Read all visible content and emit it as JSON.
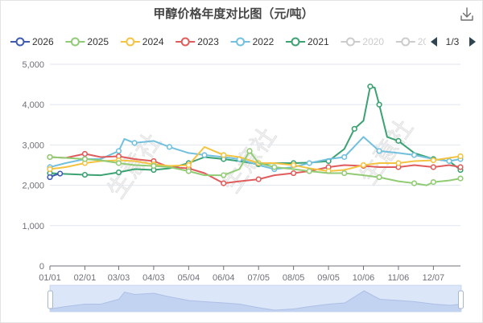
{
  "toolbar": {
    "download_icon": "download-icon"
  },
  "watermark": "生意社",
  "legend": {
    "hidden_items": [
      {
        "name": "2020",
        "color": "#cccccc"
      },
      {
        "name": "20",
        "color": "#cccccc"
      }
    ],
    "page_label": "1/3",
    "prev_icon": "triangle-left-icon",
    "next_icon": "triangle-right-icon",
    "inactive_color": "#cccccc"
  },
  "chart_data": {
    "type": "line",
    "title": "甲醇价格年度对比图（元/吨）",
    "xlabel": "",
    "ylabel": "",
    "ylim": [
      0,
      5000
    ],
    "grid": true,
    "legend_position": "top",
    "y_tick_labels": [
      "0",
      "1,000",
      "2,000",
      "3,000",
      "4,000",
      "5,000"
    ],
    "x_tick_labels": [
      "01/01",
      "02/01",
      "03/03",
      "04/03",
      "05/04",
      "06/04",
      "07/05",
      "08/05",
      "09/05",
      "10/06",
      "11/06",
      "12/07"
    ],
    "series": [
      {
        "name": "2026",
        "color": "#3f5bb0",
        "points": [
          [
            "01/01",
            2200
          ],
          [
            "01/05",
            2250
          ],
          [
            "01/10",
            2290
          ]
        ]
      },
      {
        "name": "2025",
        "color": "#91cc75",
        "points": [
          [
            "01/01",
            2700
          ],
          [
            "01/15",
            2680
          ],
          [
            "02/01",
            2650
          ],
          [
            "02/15",
            2620
          ],
          [
            "03/03",
            2550
          ],
          [
            "03/17",
            2500
          ],
          [
            "04/03",
            2480
          ],
          [
            "04/17",
            2450
          ],
          [
            "05/04",
            2350
          ],
          [
            "05/18",
            2250
          ],
          [
            "06/04",
            2250
          ],
          [
            "06/18",
            2400
          ],
          [
            "06/27",
            2850
          ],
          [
            "07/05",
            2550
          ],
          [
            "07/19",
            2450
          ],
          [
            "08/05",
            2400
          ],
          [
            "08/19",
            2350
          ],
          [
            "09/05",
            2300
          ],
          [
            "09/19",
            2300
          ],
          [
            "10/06",
            2250
          ],
          [
            "10/20",
            2200
          ],
          [
            "11/06",
            2100
          ],
          [
            "11/20",
            2050
          ],
          [
            "12/01",
            2000
          ],
          [
            "12/07",
            2080
          ],
          [
            "12/21",
            2120
          ],
          [
            "12/31",
            2170
          ]
        ]
      },
      {
        "name": "2024",
        "color": "#f5c342",
        "points": [
          [
            "01/01",
            2400
          ],
          [
            "01/15",
            2450
          ],
          [
            "02/01",
            2550
          ],
          [
            "02/15",
            2600
          ],
          [
            "03/03",
            2620
          ],
          [
            "03/17",
            2600
          ],
          [
            "04/03",
            2520
          ],
          [
            "04/17",
            2480
          ],
          [
            "05/04",
            2500
          ],
          [
            "05/18",
            2950
          ],
          [
            "06/04",
            2750
          ],
          [
            "06/18",
            2700
          ],
          [
            "07/05",
            2550
          ],
          [
            "07/19",
            2550
          ],
          [
            "08/05",
            2500
          ],
          [
            "08/19",
            2420
          ],
          [
            "09/05",
            2350
          ],
          [
            "09/19",
            2380
          ],
          [
            "10/06",
            2500
          ],
          [
            "10/20",
            2550
          ],
          [
            "11/06",
            2550
          ],
          [
            "11/20",
            2600
          ],
          [
            "12/07",
            2620
          ],
          [
            "12/21",
            2680
          ],
          [
            "12/31",
            2720
          ]
        ]
      },
      {
        "name": "2023",
        "color": "#e05c5c",
        "points": [
          [
            "01/01",
            2700
          ],
          [
            "01/15",
            2680
          ],
          [
            "02/01",
            2780
          ],
          [
            "02/15",
            2700
          ],
          [
            "03/03",
            2720
          ],
          [
            "03/17",
            2650
          ],
          [
            "04/03",
            2600
          ],
          [
            "04/17",
            2450
          ],
          [
            "05/04",
            2420
          ],
          [
            "05/18",
            2300
          ],
          [
            "06/04",
            2050
          ],
          [
            "06/18",
            2100
          ],
          [
            "07/05",
            2150
          ],
          [
            "07/19",
            2250
          ],
          [
            "08/05",
            2300
          ],
          [
            "08/19",
            2350
          ],
          [
            "09/05",
            2450
          ],
          [
            "09/19",
            2500
          ],
          [
            "10/06",
            2480
          ],
          [
            "10/20",
            2450
          ],
          [
            "11/06",
            2450
          ],
          [
            "11/20",
            2500
          ],
          [
            "12/07",
            2450
          ],
          [
            "12/21",
            2500
          ],
          [
            "12/31",
            2450
          ]
        ]
      },
      {
        "name": "2022",
        "color": "#73c0de",
        "points": [
          [
            "01/01",
            2450
          ],
          [
            "01/15",
            2550
          ],
          [
            "02/01",
            2650
          ],
          [
            "02/15",
            2650
          ],
          [
            "03/03",
            2850
          ],
          [
            "03/08",
            3150
          ],
          [
            "03/17",
            3050
          ],
          [
            "04/03",
            3100
          ],
          [
            "04/17",
            2950
          ],
          [
            "05/04",
            2800
          ],
          [
            "05/18",
            2750
          ],
          [
            "06/04",
            2700
          ],
          [
            "06/18",
            2650
          ],
          [
            "07/05",
            2500
          ],
          [
            "07/19",
            2400
          ],
          [
            "08/05",
            2450
          ],
          [
            "08/19",
            2550
          ],
          [
            "09/05",
            2650
          ],
          [
            "09/19",
            2700
          ],
          [
            "10/06",
            3200
          ],
          [
            "10/20",
            2850
          ],
          [
            "11/06",
            2800
          ],
          [
            "11/20",
            2750
          ],
          [
            "12/07",
            2650
          ],
          [
            "12/21",
            2600
          ],
          [
            "12/31",
            2650
          ]
        ]
      },
      {
        "name": "2021",
        "color": "#3ba272",
        "points": [
          [
            "01/01",
            2300
          ],
          [
            "01/15",
            2280
          ],
          [
            "02/01",
            2260
          ],
          [
            "02/15",
            2250
          ],
          [
            "03/03",
            2320
          ],
          [
            "03/17",
            2400
          ],
          [
            "04/03",
            2380
          ],
          [
            "04/17",
            2420
          ],
          [
            "05/04",
            2550
          ],
          [
            "05/18",
            2700
          ],
          [
            "06/04",
            2650
          ],
          [
            "06/18",
            2600
          ],
          [
            "07/05",
            2520
          ],
          [
            "07/19",
            2550
          ],
          [
            "08/05",
            2550
          ],
          [
            "08/19",
            2560
          ],
          [
            "09/05",
            2600
          ],
          [
            "09/19",
            2900
          ],
          [
            "09/28",
            3400
          ],
          [
            "10/06",
            3600
          ],
          [
            "10/12",
            4450
          ],
          [
            "10/16",
            4420
          ],
          [
            "10/20",
            4000
          ],
          [
            "10/27",
            3200
          ],
          [
            "11/06",
            3100
          ],
          [
            "11/20",
            2800
          ],
          [
            "12/07",
            2650
          ],
          [
            "12/21",
            2600
          ],
          [
            "12/31",
            2380
          ]
        ]
      }
    ]
  }
}
